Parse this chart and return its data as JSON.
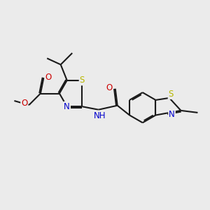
{
  "bg_color": "#ebebeb",
  "bond_color": "#1a1a1a",
  "bond_width": 1.5,
  "dbl_sep": 0.055,
  "atom_colors": {
    "S": "#b8b800",
    "N": "#0000cc",
    "O": "#cc0000",
    "C": "#1a1a1a"
  },
  "font_size": 8.5
}
